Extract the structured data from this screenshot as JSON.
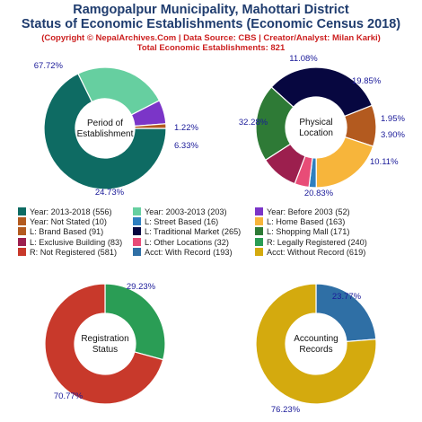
{
  "header": {
    "title_line1": "Ramgopalpur Municipality, Mahottari District",
    "title_line2": "Status of Economic Establishments (Economic Census 2018)",
    "credit": "(Copyright © NepalArchives.Com | Data Source: CBS | Creator/Analyst: Milan Karki)",
    "total": "Total Economic Establishments: 821"
  },
  "chart_data": [
    {
      "type": "pie",
      "center_label": [
        "Period of",
        "Establishment"
      ],
      "categories": [
        "Year: 2013-2018",
        "Year: 2003-2013",
        "Year: Before 2003",
        "Year: Not Stated"
      ],
      "values": [
        556,
        203,
        52,
        10
      ],
      "percent_labels": [
        "67.72%",
        "24.73%",
        "6.33%",
        "1.22%"
      ],
      "colors": [
        "#0e6b63",
        "#66cfa0",
        "#7b35c8",
        "#b35a1f"
      ]
    },
    {
      "type": "pie",
      "center_label": [
        "Physical",
        "Location"
      ],
      "categories": [
        "L: Brand Based",
        "L: Home Based",
        "L: Street Based",
        "L: Other Locations",
        "L: Exclusive Building",
        "L: Shopping Mall",
        "L: Traditional Market"
      ],
      "values": [
        91,
        163,
        16,
        32,
        83,
        171,
        265
      ],
      "percent_labels": [
        "11.08%",
        "19.85%",
        "1.95%",
        "3.90%",
        "10.11%",
        "20.83%",
        "32.28%"
      ],
      "colors": [
        "#b35a1f",
        "#f7b53b",
        "#2e7fc0",
        "#e84c77",
        "#9c1f4e",
        "#2e7a36",
        "#070740"
      ]
    },
    {
      "type": "pie",
      "center_label": [
        "Registration",
        "Status"
      ],
      "categories": [
        "R: Legally Registered",
        "R: Not Registered"
      ],
      "values": [
        240,
        581
      ],
      "percent_labels": [
        "29.23%",
        "70.77%"
      ],
      "colors": [
        "#2a9d55",
        "#c8392b"
      ]
    },
    {
      "type": "pie",
      "center_label": [
        "Accounting",
        "Records"
      ],
      "categories": [
        "Acct: With Record",
        "Acct: Without Record"
      ],
      "values": [
        193,
        619
      ],
      "percent_labels": [
        "23.77%",
        "76.23%"
      ],
      "colors": [
        "#2f6fa5",
        "#d4aa0e"
      ]
    }
  ],
  "legend": [
    {
      "label": "Year: 2013-2018 (556)",
      "color": "#0e6b63"
    },
    {
      "label": "Year: 2003-2013 (203)",
      "color": "#66cfa0"
    },
    {
      "label": "Year: Before 2003 (52)",
      "color": "#7b35c8"
    },
    {
      "label": "Year: Not Stated (10)",
      "color": "#b35a1f"
    },
    {
      "label": "L: Street Based (16)",
      "color": "#2e7fc0"
    },
    {
      "label": "L: Home Based (163)",
      "color": "#f7b53b"
    },
    {
      "label": "L: Brand Based (91)",
      "color": "#b35a1f"
    },
    {
      "label": "L: Traditional Market (265)",
      "color": "#070740"
    },
    {
      "label": "L: Shopping Mall (171)",
      "color": "#2e7a36"
    },
    {
      "label": "L: Exclusive Building (83)",
      "color": "#9c1f4e"
    },
    {
      "label": "L: Other Locations (32)",
      "color": "#e84c77"
    },
    {
      "label": "R: Legally Registered (240)",
      "color": "#2a9d55"
    },
    {
      "label": "R: Not Registered (581)",
      "color": "#c8392b"
    },
    {
      "label": "Acct: With Record (193)",
      "color": "#2f6fa5"
    },
    {
      "label": "Acct: Without Record (619)",
      "color": "#d4aa0e"
    }
  ]
}
